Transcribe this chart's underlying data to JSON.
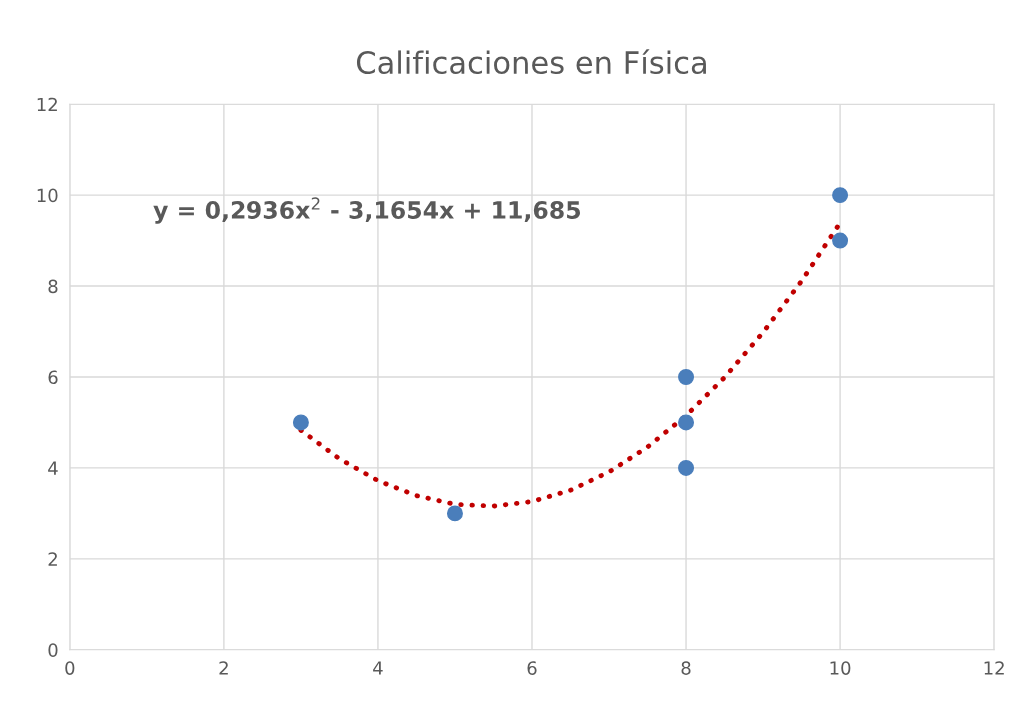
{
  "chart_data": {
    "type": "scatter",
    "title": "Calificaciones en Física",
    "series": [
      {
        "color": "#4a7ebb",
        "marker": "circle",
        "x": [
          3,
          5,
          8,
          8,
          8,
          10,
          10
        ],
        "values": [
          5,
          3,
          6,
          5,
          4,
          10,
          9
        ]
      },
      {
        "type": "line",
        "color": "#c00000",
        "marker": "none",
        "line_style": "dotted",
        "x": [
          3,
          3.5,
          4,
          4.5,
          5,
          5.5,
          6,
          6.5,
          7,
          7.5,
          8,
          8.5,
          9,
          9.5,
          10
        ],
        "values": [
          4.83,
          4.2,
          3.72,
          3.39,
          3.2,
          3.16,
          3.26,
          3.51,
          3.91,
          4.46,
          5.15,
          5.99,
          6.98,
          8.11,
          9.39
        ]
      }
    ],
    "annotations": [
      "y = 0,2936x$^{2}$ - 3,1654x + 11,685"
    ],
    "xlim": [
      0,
      12
    ],
    "xticks": [
      0,
      2,
      4,
      6,
      8,
      10,
      12
    ],
    "ylim": [
      0,
      12
    ],
    "yticks": [
      0,
      2,
      4,
      6,
      8,
      10,
      12
    ],
    "grid": true,
    "legend": false
  }
}
